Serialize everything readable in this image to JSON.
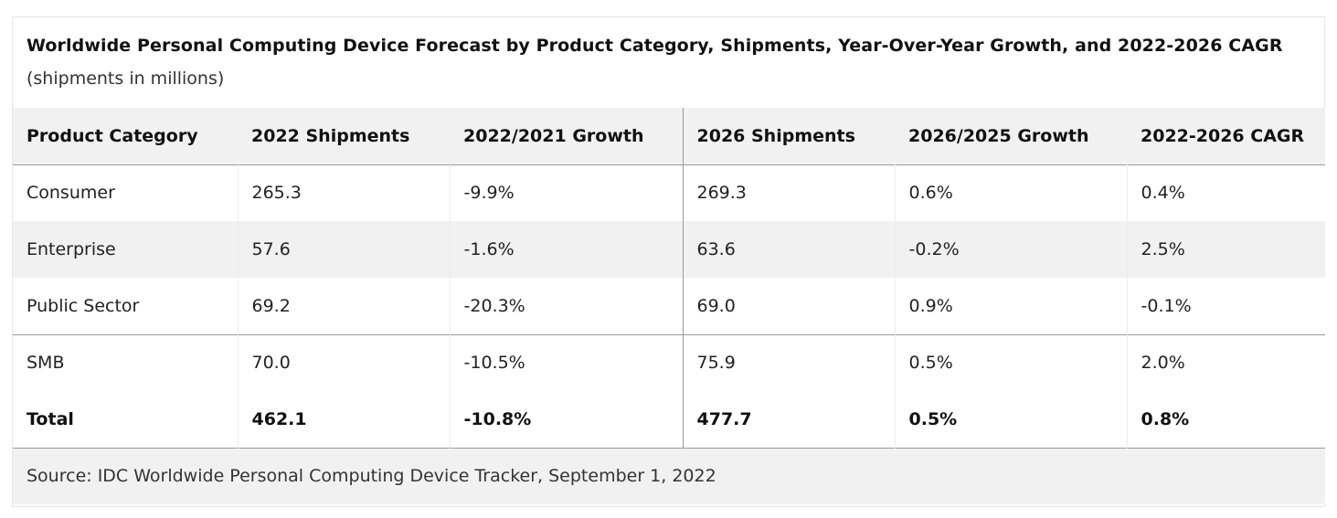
{
  "caption": {
    "title": "Worldwide Personal Computing Device Forecast by Product Category, Shipments, Year-Over-Year Growth, and 2022-2026 CAGR",
    "subtitle": "(shipments in millions)"
  },
  "table": {
    "headers": [
      "Product Category",
      "2022 Shipments",
      "2022/2021 Growth",
      "2026 Shipments",
      "2026/2025 Growth",
      "2022-2026 CAGR"
    ],
    "rows": [
      [
        "Consumer",
        "265.3",
        "-9.9%",
        "269.3",
        "0.6%",
        "0.4%"
      ],
      [
        "Enterprise",
        "57.6",
        "-1.6%",
        "63.6",
        "-0.2%",
        "2.5%"
      ],
      [
        "Public Sector",
        "69.2",
        "-20.3%",
        "69.0",
        "0.9%",
        "-0.1%"
      ],
      [
        "SMB",
        "70.0",
        "-10.5%",
        "75.9",
        "0.5%",
        "2.0%"
      ]
    ],
    "total": [
      "Total",
      "462.1",
      "-10.8%",
      "477.7",
      "0.5%",
      "0.8%"
    ],
    "source": "Source: IDC Worldwide Personal Computing Device Tracker, September 1, 2022"
  },
  "colors": {
    "header_bg": "#f1f1f1",
    "stripe_bg": "#f1f1f1",
    "divider": "#9a9a9a"
  }
}
